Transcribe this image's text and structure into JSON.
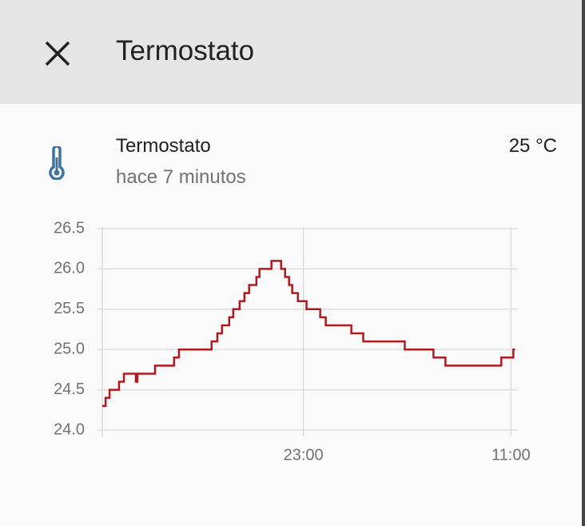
{
  "header": {
    "title": "Termostato"
  },
  "entity": {
    "name": "Termostato",
    "last_changed": "hace 7 minutos",
    "state": "25 °C"
  },
  "chart_data": {
    "type": "line",
    "x": [
      11.37,
      11.56,
      11.79,
      12.34,
      12.62,
      13.31,
      13.4,
      14.42,
      15.52,
      15.8,
      17.69,
      18.02,
      18.29,
      18.71,
      18.94,
      19.31,
      19.59,
      19.86,
      20.28,
      20.46,
      21.15,
      21.71,
      21.94,
      22.17,
      22.35,
      22.68,
      23.18,
      23.97,
      24.29,
      25.77,
      26.46,
      28.86,
      30.52,
      31.21,
      34.44,
      35.14,
      35.23
    ],
    "series": [
      {
        "color": "#b0191e",
        "values": [
          24.3,
          24.4,
          24.5,
          24.6,
          24.7,
          24.6,
          24.7,
          24.8,
          24.9,
          25.0,
          25.1,
          25.2,
          25.3,
          25.4,
          25.5,
          25.6,
          25.7,
          25.8,
          25.9,
          26.0,
          26.1,
          26.0,
          25.9,
          25.8,
          25.7,
          25.6,
          25.5,
          25.4,
          25.3,
          25.2,
          25.1,
          25.0,
          24.9,
          24.8,
          24.9,
          25.0,
          25.0
        ]
      }
    ],
    "step": true,
    "xlim": [
      11.37,
      35.4
    ],
    "xticks": [
      {
        "value": 23,
        "label": "23:00"
      },
      {
        "value": 35,
        "label": "11:00"
      }
    ],
    "ylim": [
      24.0,
      26.5
    ],
    "yticks": [
      {
        "value": 24,
        "label": "24.0"
      },
      24.5,
      {
        "value": 25,
        "label": "25.0"
      },
      25.5,
      {
        "value": 26,
        "label": "26.0"
      },
      26.5
    ],
    "grid": true
  }
}
